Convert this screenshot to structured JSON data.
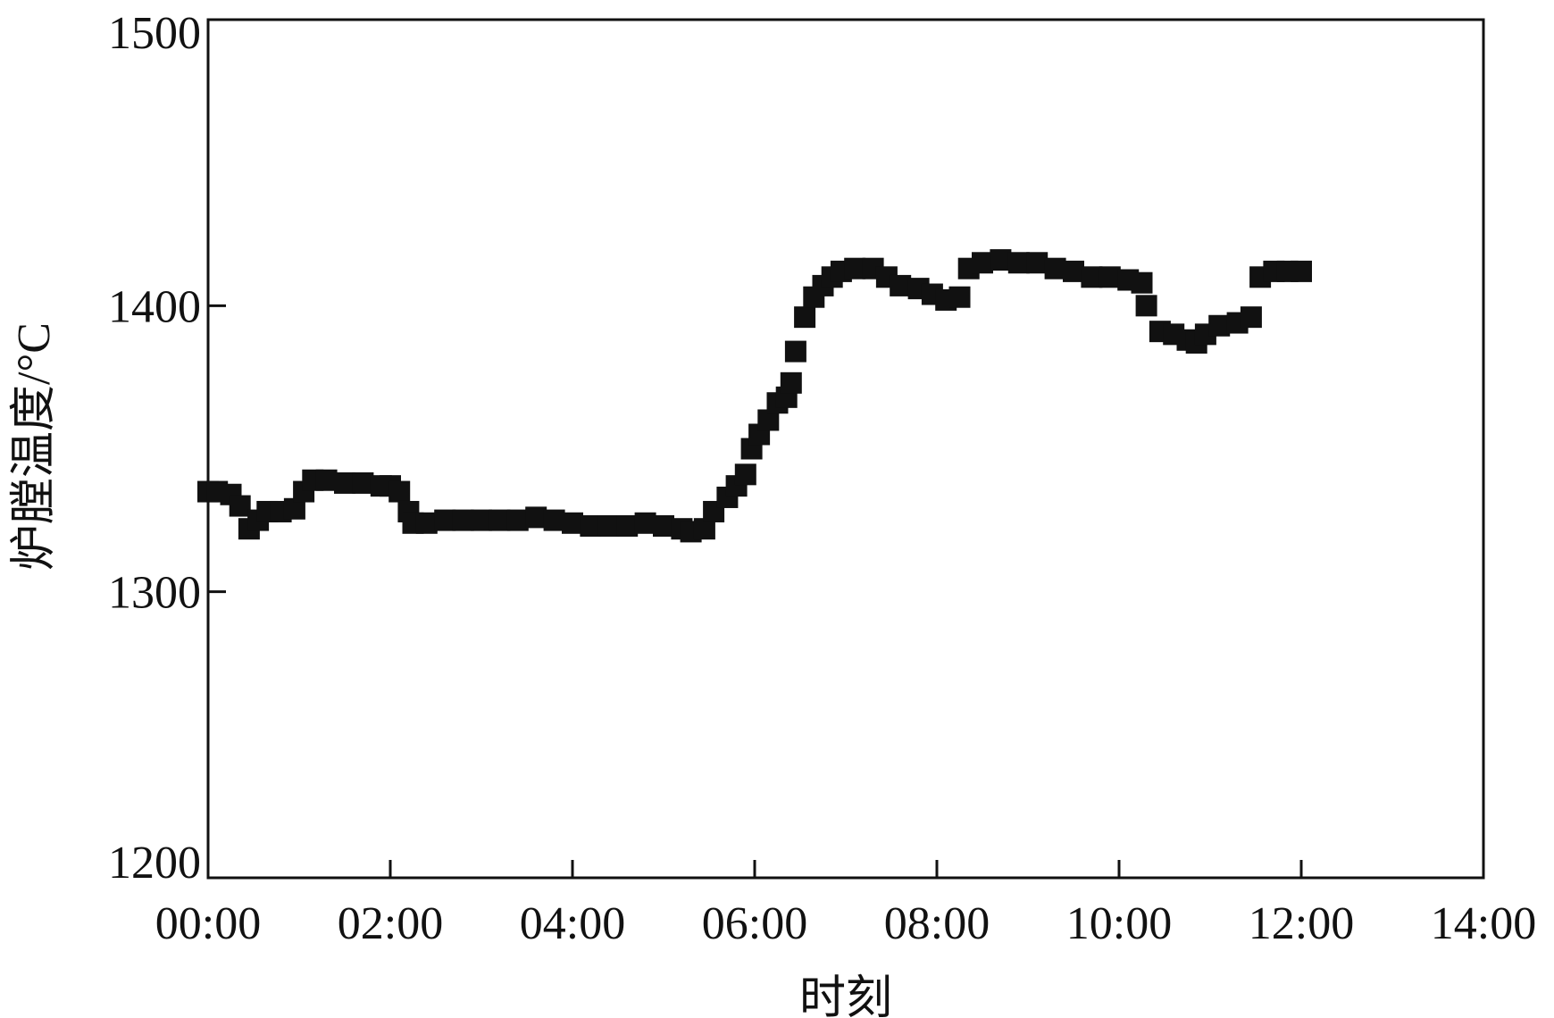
{
  "chart_data": {
    "type": "scatter",
    "title": "",
    "xlabel": "时刻",
    "ylabel": "炉膛温度/°C",
    "xlim": [
      "00:00",
      "14:00"
    ],
    "ylim": [
      1200,
      1500
    ],
    "x_ticks": [
      "00:00",
      "02:00",
      "04:00",
      "06:00",
      "08:00",
      "10:00",
      "12:00",
      "14:00"
    ],
    "y_ticks": [
      1200,
      1300,
      1400,
      1500
    ],
    "grid": false,
    "marker": "square",
    "marker_color": "#111111",
    "points": [
      [
        "00:00",
        1335
      ],
      [
        "00:06",
        1335
      ],
      [
        "00:15",
        1334
      ],
      [
        "00:21",
        1330
      ],
      [
        "00:27",
        1322
      ],
      [
        "00:33",
        1325
      ],
      [
        "00:39",
        1328
      ],
      [
        "00:48",
        1328
      ],
      [
        "00:57",
        1329
      ],
      [
        "01:03",
        1335
      ],
      [
        "01:09",
        1339
      ],
      [
        "01:18",
        1339
      ],
      [
        "01:30",
        1338
      ],
      [
        "01:42",
        1338
      ],
      [
        "01:54",
        1337
      ],
      [
        "02:00",
        1337
      ],
      [
        "02:06",
        1335
      ],
      [
        "02:12",
        1328
      ],
      [
        "02:15",
        1324
      ],
      [
        "02:24",
        1324
      ],
      [
        "02:36",
        1325
      ],
      [
        "02:48",
        1325
      ],
      [
        "03:00",
        1325
      ],
      [
        "03:12",
        1325
      ],
      [
        "03:24",
        1325
      ],
      [
        "03:36",
        1326
      ],
      [
        "03:48",
        1325
      ],
      [
        "04:00",
        1324
      ],
      [
        "04:12",
        1323
      ],
      [
        "04:24",
        1323
      ],
      [
        "04:36",
        1323
      ],
      [
        "04:48",
        1324
      ],
      [
        "05:00",
        1323
      ],
      [
        "05:12",
        1322
      ],
      [
        "05:18",
        1321
      ],
      [
        "05:27",
        1322
      ],
      [
        "05:33",
        1328
      ],
      [
        "05:42",
        1333
      ],
      [
        "05:48",
        1337
      ],
      [
        "05:54",
        1341
      ],
      [
        "05:58",
        1350
      ],
      [
        "06:03",
        1355
      ],
      [
        "06:09",
        1360
      ],
      [
        "06:15",
        1366
      ],
      [
        "06:21",
        1368
      ],
      [
        "06:24",
        1373
      ],
      [
        "06:27",
        1384
      ],
      [
        "06:33",
        1396
      ],
      [
        "06:39",
        1403
      ],
      [
        "06:45",
        1407
      ],
      [
        "06:51",
        1410
      ],
      [
        "06:57",
        1412
      ],
      [
        "07:06",
        1413
      ],
      [
        "07:18",
        1413
      ],
      [
        "07:27",
        1410
      ],
      [
        "07:36",
        1407
      ],
      [
        "07:48",
        1406
      ],
      [
        "07:57",
        1404
      ],
      [
        "08:06",
        1402
      ],
      [
        "08:15",
        1403
      ],
      [
        "08:21",
        1413
      ],
      [
        "08:30",
        1415
      ],
      [
        "08:42",
        1416
      ],
      [
        "08:54",
        1415
      ],
      [
        "09:06",
        1415
      ],
      [
        "09:18",
        1413
      ],
      [
        "09:30",
        1412
      ],
      [
        "09:42",
        1410
      ],
      [
        "09:54",
        1410
      ],
      [
        "10:06",
        1409
      ],
      [
        "10:15",
        1408
      ],
      [
        "10:18",
        1400
      ],
      [
        "10:27",
        1391
      ],
      [
        "10:36",
        1390
      ],
      [
        "10:45",
        1388
      ],
      [
        "10:51",
        1387
      ],
      [
        "10:57",
        1390
      ],
      [
        "11:06",
        1393
      ],
      [
        "11:18",
        1394
      ],
      [
        "11:27",
        1396
      ],
      [
        "11:33",
        1410
      ],
      [
        "11:42",
        1412
      ],
      [
        "11:51",
        1412
      ],
      [
        "12:00",
        1412
      ]
    ]
  }
}
